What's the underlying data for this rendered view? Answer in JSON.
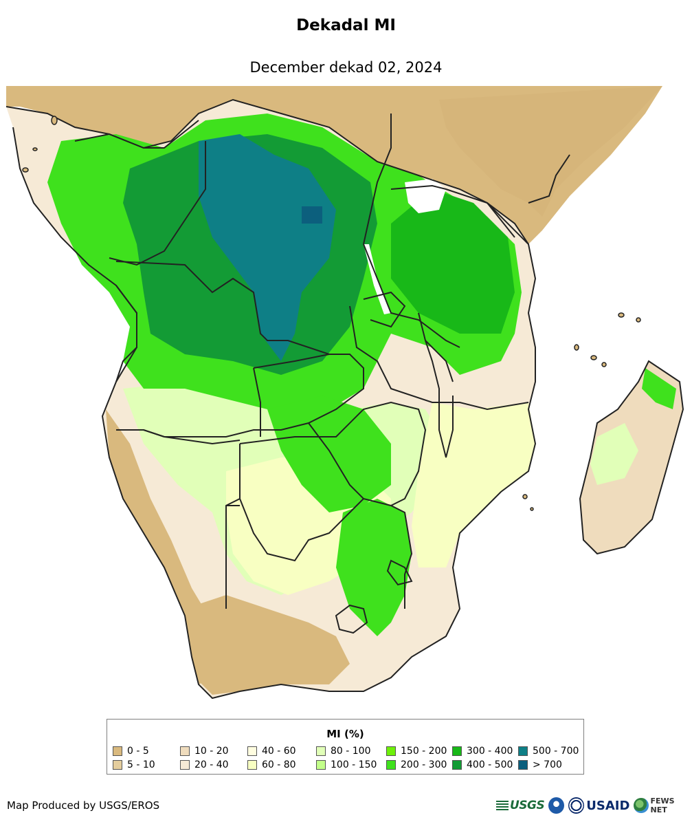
{
  "title": "Dekadal MI",
  "subtitle": "December dekad 02, 2024",
  "legend": {
    "title": "MI (%)",
    "items": [
      {
        "label": "0 - 5",
        "color": "#d9b97e"
      },
      {
        "label": "5 - 10",
        "color": "#e4cd9d"
      },
      {
        "label": "10 - 20",
        "color": "#efdcbd"
      },
      {
        "label": "20 - 40",
        "color": "#f6ead6"
      },
      {
        "label": "40 - 60",
        "color": "#fffde0"
      },
      {
        "label": "60 - 80",
        "color": "#f8ffc2"
      },
      {
        "label": "80 - 100",
        "color": "#e1ffb8"
      },
      {
        "label": "100 - 150",
        "color": "#c3ff8a"
      },
      {
        "label": "150 - 200",
        "color": "#6ef00a"
      },
      {
        "label": "200 - 300",
        "color": "#3fe11d"
      },
      {
        "label": "300 - 400",
        "color": "#18b818"
      },
      {
        "label": "400 - 500",
        "color": "#139b35"
      },
      {
        "label": "500 - 700",
        "color": "#0e7f86"
      },
      {
        "label": "> 700",
        "color": "#0c5f7d"
      }
    ]
  },
  "footer": {
    "credit": "Map Produced by USGS/EROS",
    "logos": {
      "usgs": "USGS",
      "usaid": "USAID",
      "fews": "FEWS NET"
    }
  }
}
